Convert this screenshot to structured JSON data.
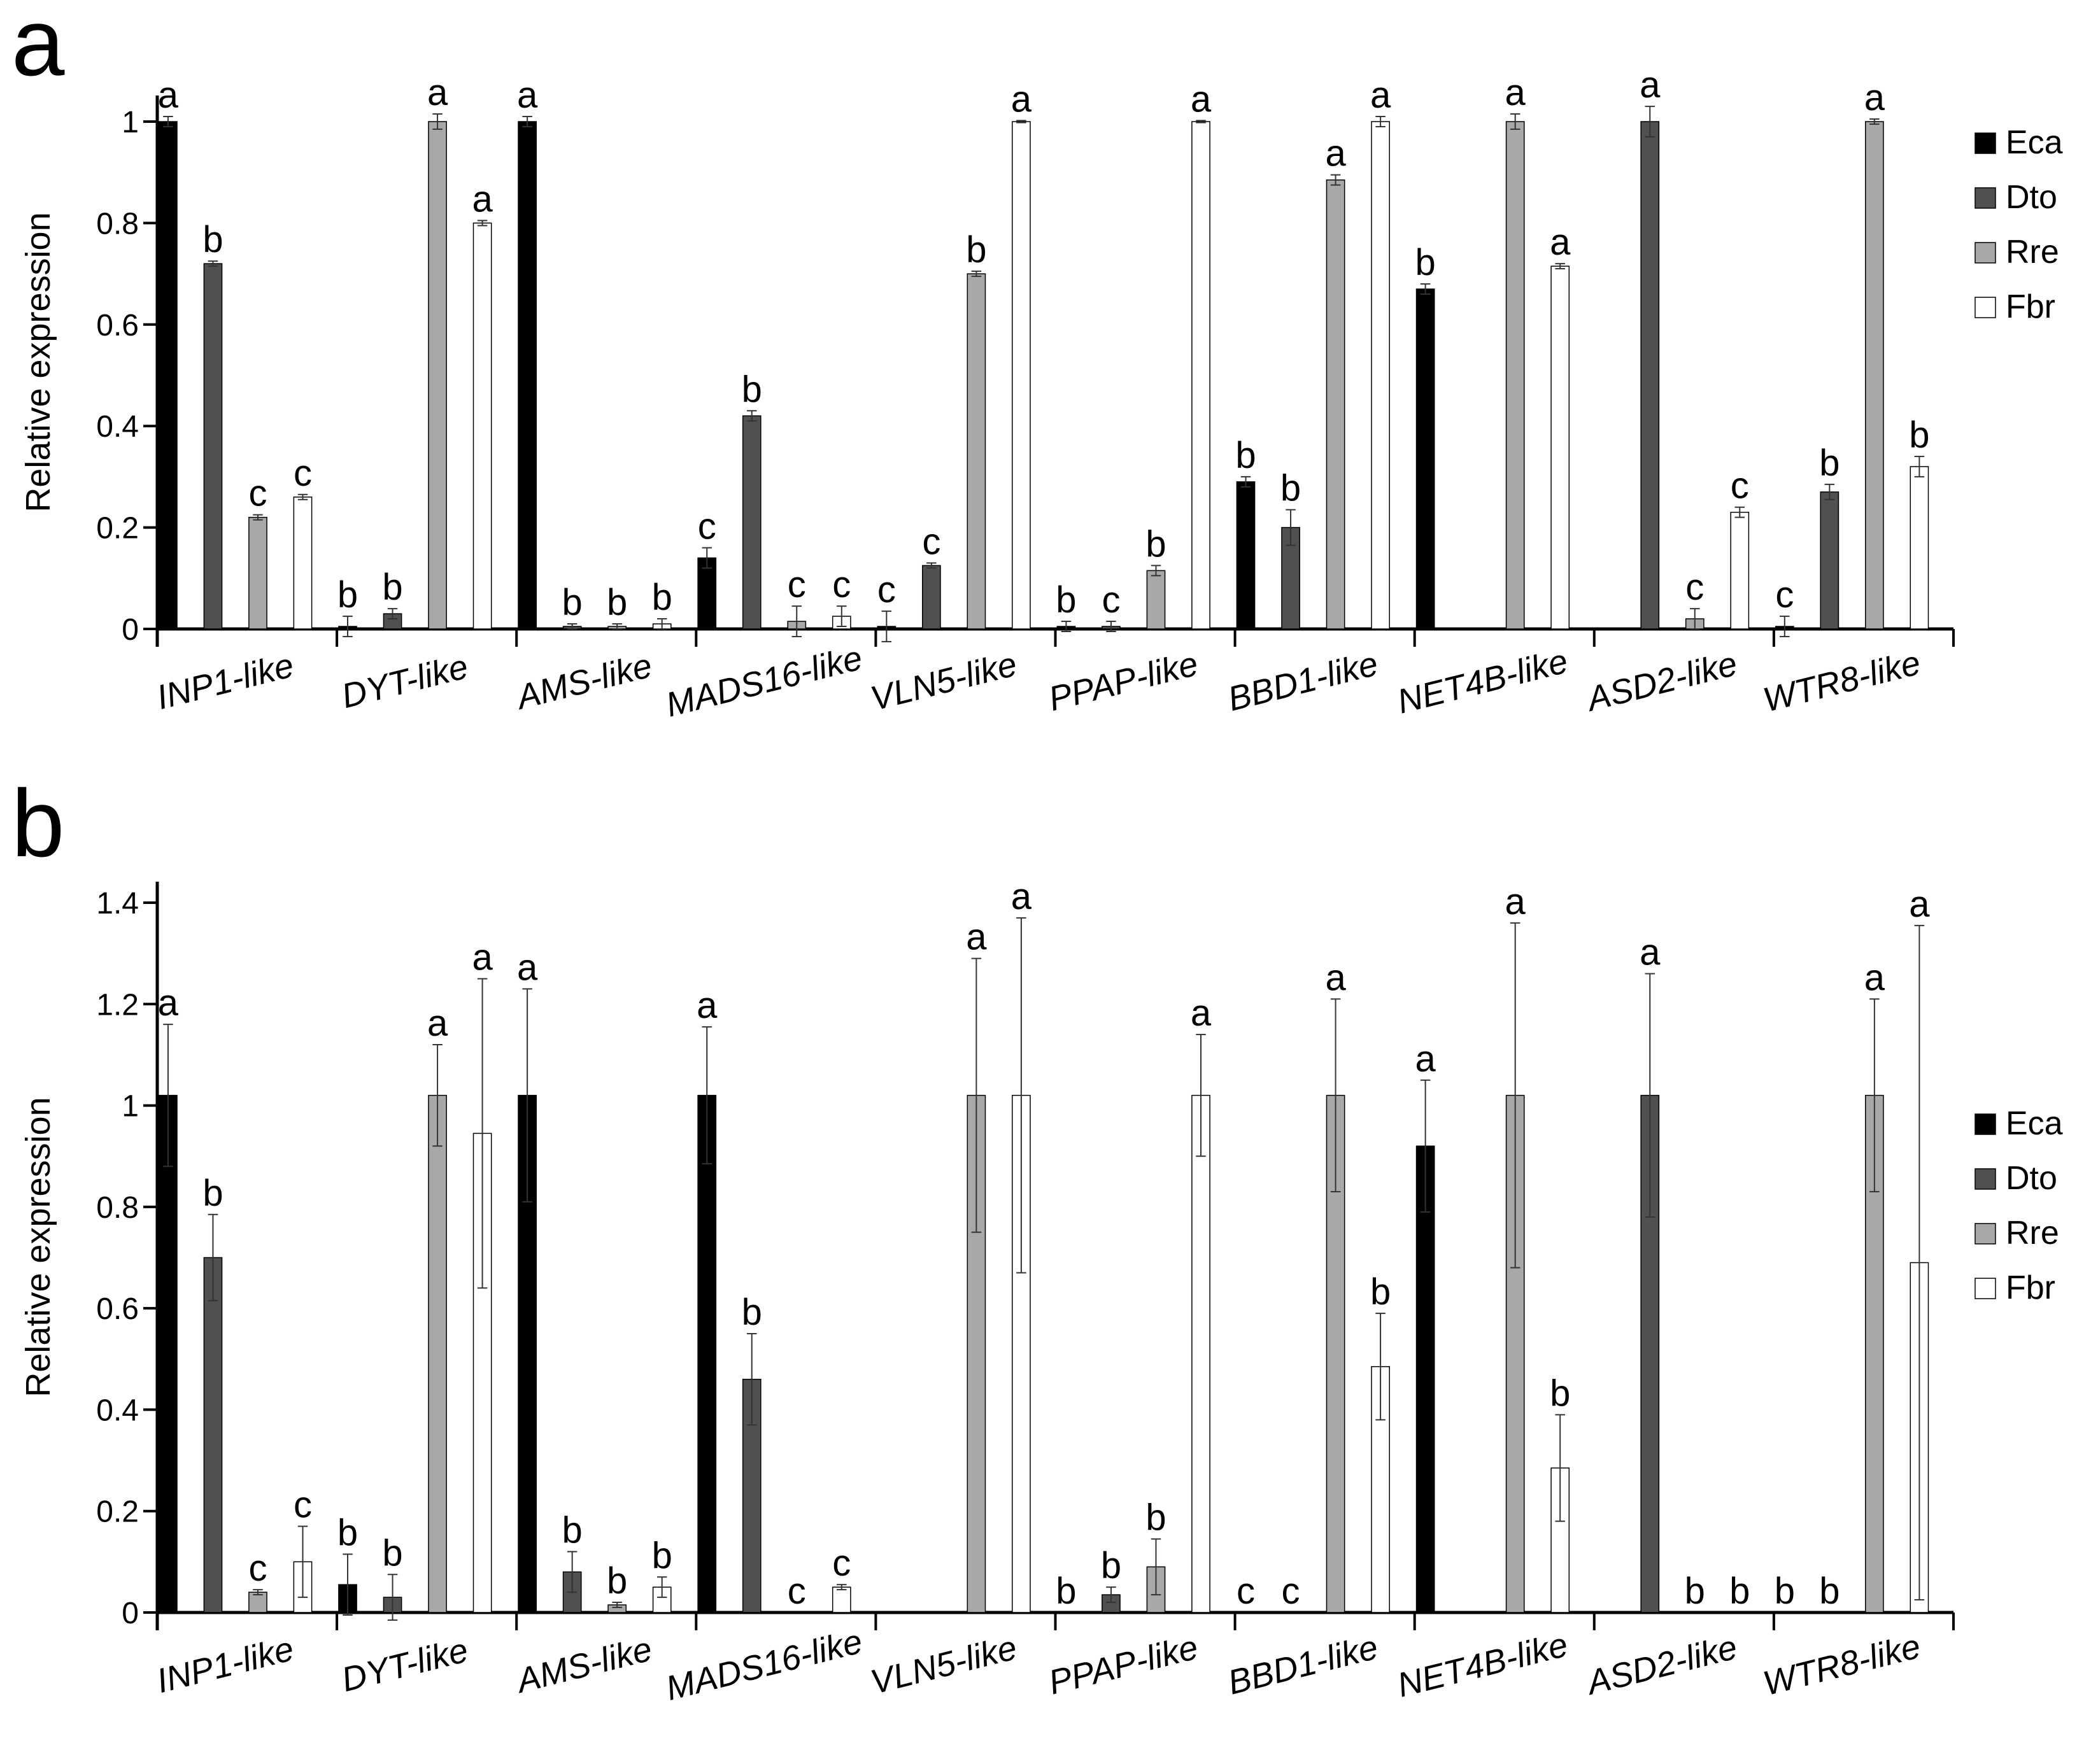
{
  "figure": {
    "colors": {
      "Eca": "#000000",
      "Dto": "#505050",
      "Rre": "#a8a8a8",
      "Fbr": "#ffffff"
    }
  },
  "chart_data": [
    {
      "type": "bar",
      "panel_label": "a",
      "ylabel": "Relative expression",
      "xlabel": "",
      "ylim": [
        0,
        1.05
      ],
      "yticks": [
        0,
        0.2,
        0.4,
        0.6,
        0.8,
        1
      ],
      "ytick_labels": [
        "0",
        "0.2",
        "0.4",
        "0.6",
        "0.8",
        "1"
      ],
      "legend_position": "right",
      "categories": [
        "INP1",
        "DYT",
        "AMS",
        "MADS16",
        "VLN5",
        "PPAP",
        "BBD1",
        "NET4B",
        "ASD2",
        "WTR8"
      ],
      "category_suffix": "-like",
      "series": [
        {
          "name": "Eca",
          "values": [
            1.0,
            0.005,
            1.0,
            0.14,
            0.005,
            0.005,
            0.29,
            0.67,
            0.0,
            0.005
          ],
          "errors": [
            0.01,
            0.02,
            0.01,
            0.02,
            0.03,
            0.01,
            0.01,
            0.01,
            0.0,
            0.02
          ],
          "letters": [
            "a",
            "b",
            "a",
            "c",
            "c",
            "b",
            "b",
            "b",
            "",
            "c"
          ]
        },
        {
          "name": "Dto",
          "values": [
            0.72,
            0.03,
            0.005,
            0.42,
            0.125,
            0.005,
            0.2,
            0.0,
            1.0,
            0.27
          ],
          "errors": [
            0.005,
            0.01,
            0.005,
            0.01,
            0.005,
            0.01,
            0.035,
            0.0,
            0.03,
            0.015
          ],
          "letters": [
            "b",
            "b",
            "b",
            "b",
            "c",
            "c",
            "b",
            "",
            "a",
            "b"
          ]
        },
        {
          "name": "Rre",
          "values": [
            0.22,
            1.0,
            0.005,
            0.015,
            0.7,
            0.115,
            0.885,
            1.0,
            0.02,
            1.0
          ],
          "errors": [
            0.005,
            0.015,
            0.005,
            0.03,
            0.005,
            0.01,
            0.01,
            0.015,
            0.02,
            0.005
          ],
          "letters": [
            "c",
            "a",
            "b",
            "c",
            "b",
            "b",
            "a",
            "a",
            "c",
            "a"
          ]
        },
        {
          "name": "Fbr",
          "values": [
            0.26,
            0.8,
            0.01,
            0.025,
            1.0,
            1.0,
            1.0,
            0.715,
            0.23,
            0.32
          ],
          "errors": [
            0.005,
            0.005,
            0.01,
            0.02,
            0.002,
            0.002,
            0.01,
            0.005,
            0.01,
            0.02
          ],
          "letters": [
            "c",
            "a",
            "b",
            "c",
            "a",
            "a",
            "a",
            "a",
            "c",
            "b"
          ]
        }
      ]
    },
    {
      "type": "bar",
      "panel_label": "b",
      "ylabel": "Relative expression",
      "xlabel": "",
      "ylim": [
        0,
        1.4
      ],
      "yticks": [
        0,
        0.2,
        0.4,
        0.6,
        0.8,
        1,
        1.2,
        1.4
      ],
      "ytick_labels": [
        "0",
        "0.2",
        "0.4",
        "0.6",
        "0.8",
        "1",
        "1.2",
        "1.4"
      ],
      "legend_position": "right",
      "categories": [
        "INP1",
        "DYT",
        "AMS",
        "MADS16",
        "VLN5",
        "PPAP",
        "BBD1",
        "NET4B",
        "ASD2",
        "WTR8"
      ],
      "category_suffix": "-like",
      "series": [
        {
          "name": "Eca",
          "values": [
            1.02,
            0.055,
            1.02,
            1.02,
            0.0,
            0.0,
            0.0,
            0.92,
            0.0,
            0.0
          ],
          "errors": [
            0.14,
            0.06,
            0.21,
            0.135,
            0.0,
            0.0,
            0.0,
            0.13,
            0.0,
            0.0
          ],
          "letters": [
            "a",
            "b",
            "a",
            "a",
            "",
            "b",
            "c",
            "a",
            "",
            "b"
          ]
        },
        {
          "name": "Dto",
          "values": [
            0.7,
            0.03,
            0.08,
            0.46,
            0.0,
            0.035,
            0.0,
            0.0,
            1.02,
            0.0
          ],
          "errors": [
            0.085,
            0.045,
            0.04,
            0.09,
            0.0,
            0.015,
            0.0,
            0.0,
            0.24,
            0.0
          ],
          "letters": [
            "b",
            "b",
            "b",
            "b",
            "",
            "b",
            "c",
            "",
            "a",
            "b"
          ]
        },
        {
          "name": "Rre",
          "values": [
            0.04,
            1.02,
            0.015,
            0.0,
            1.02,
            0.09,
            1.02,
            1.02,
            0.0,
            1.02
          ],
          "errors": [
            0.005,
            0.1,
            0.005,
            0.0,
            0.27,
            0.055,
            0.19,
            0.34,
            0.0,
            0.19
          ],
          "letters": [
            "c",
            "a",
            "b",
            "c",
            "a",
            "b",
            "a",
            "a",
            "b",
            "a"
          ]
        },
        {
          "name": "Fbr",
          "values": [
            0.1,
            0.945,
            0.05,
            0.05,
            1.02,
            1.02,
            0.485,
            0.285,
            0.0,
            0.69
          ],
          "errors": [
            0.07,
            0.305,
            0.02,
            0.005,
            0.35,
            0.12,
            0.105,
            0.105,
            0.0,
            0.665
          ],
          "letters": [
            "c",
            "a",
            "b",
            "c",
            "a",
            "a",
            "b",
            "b",
            "b",
            "a"
          ]
        }
      ]
    }
  ]
}
